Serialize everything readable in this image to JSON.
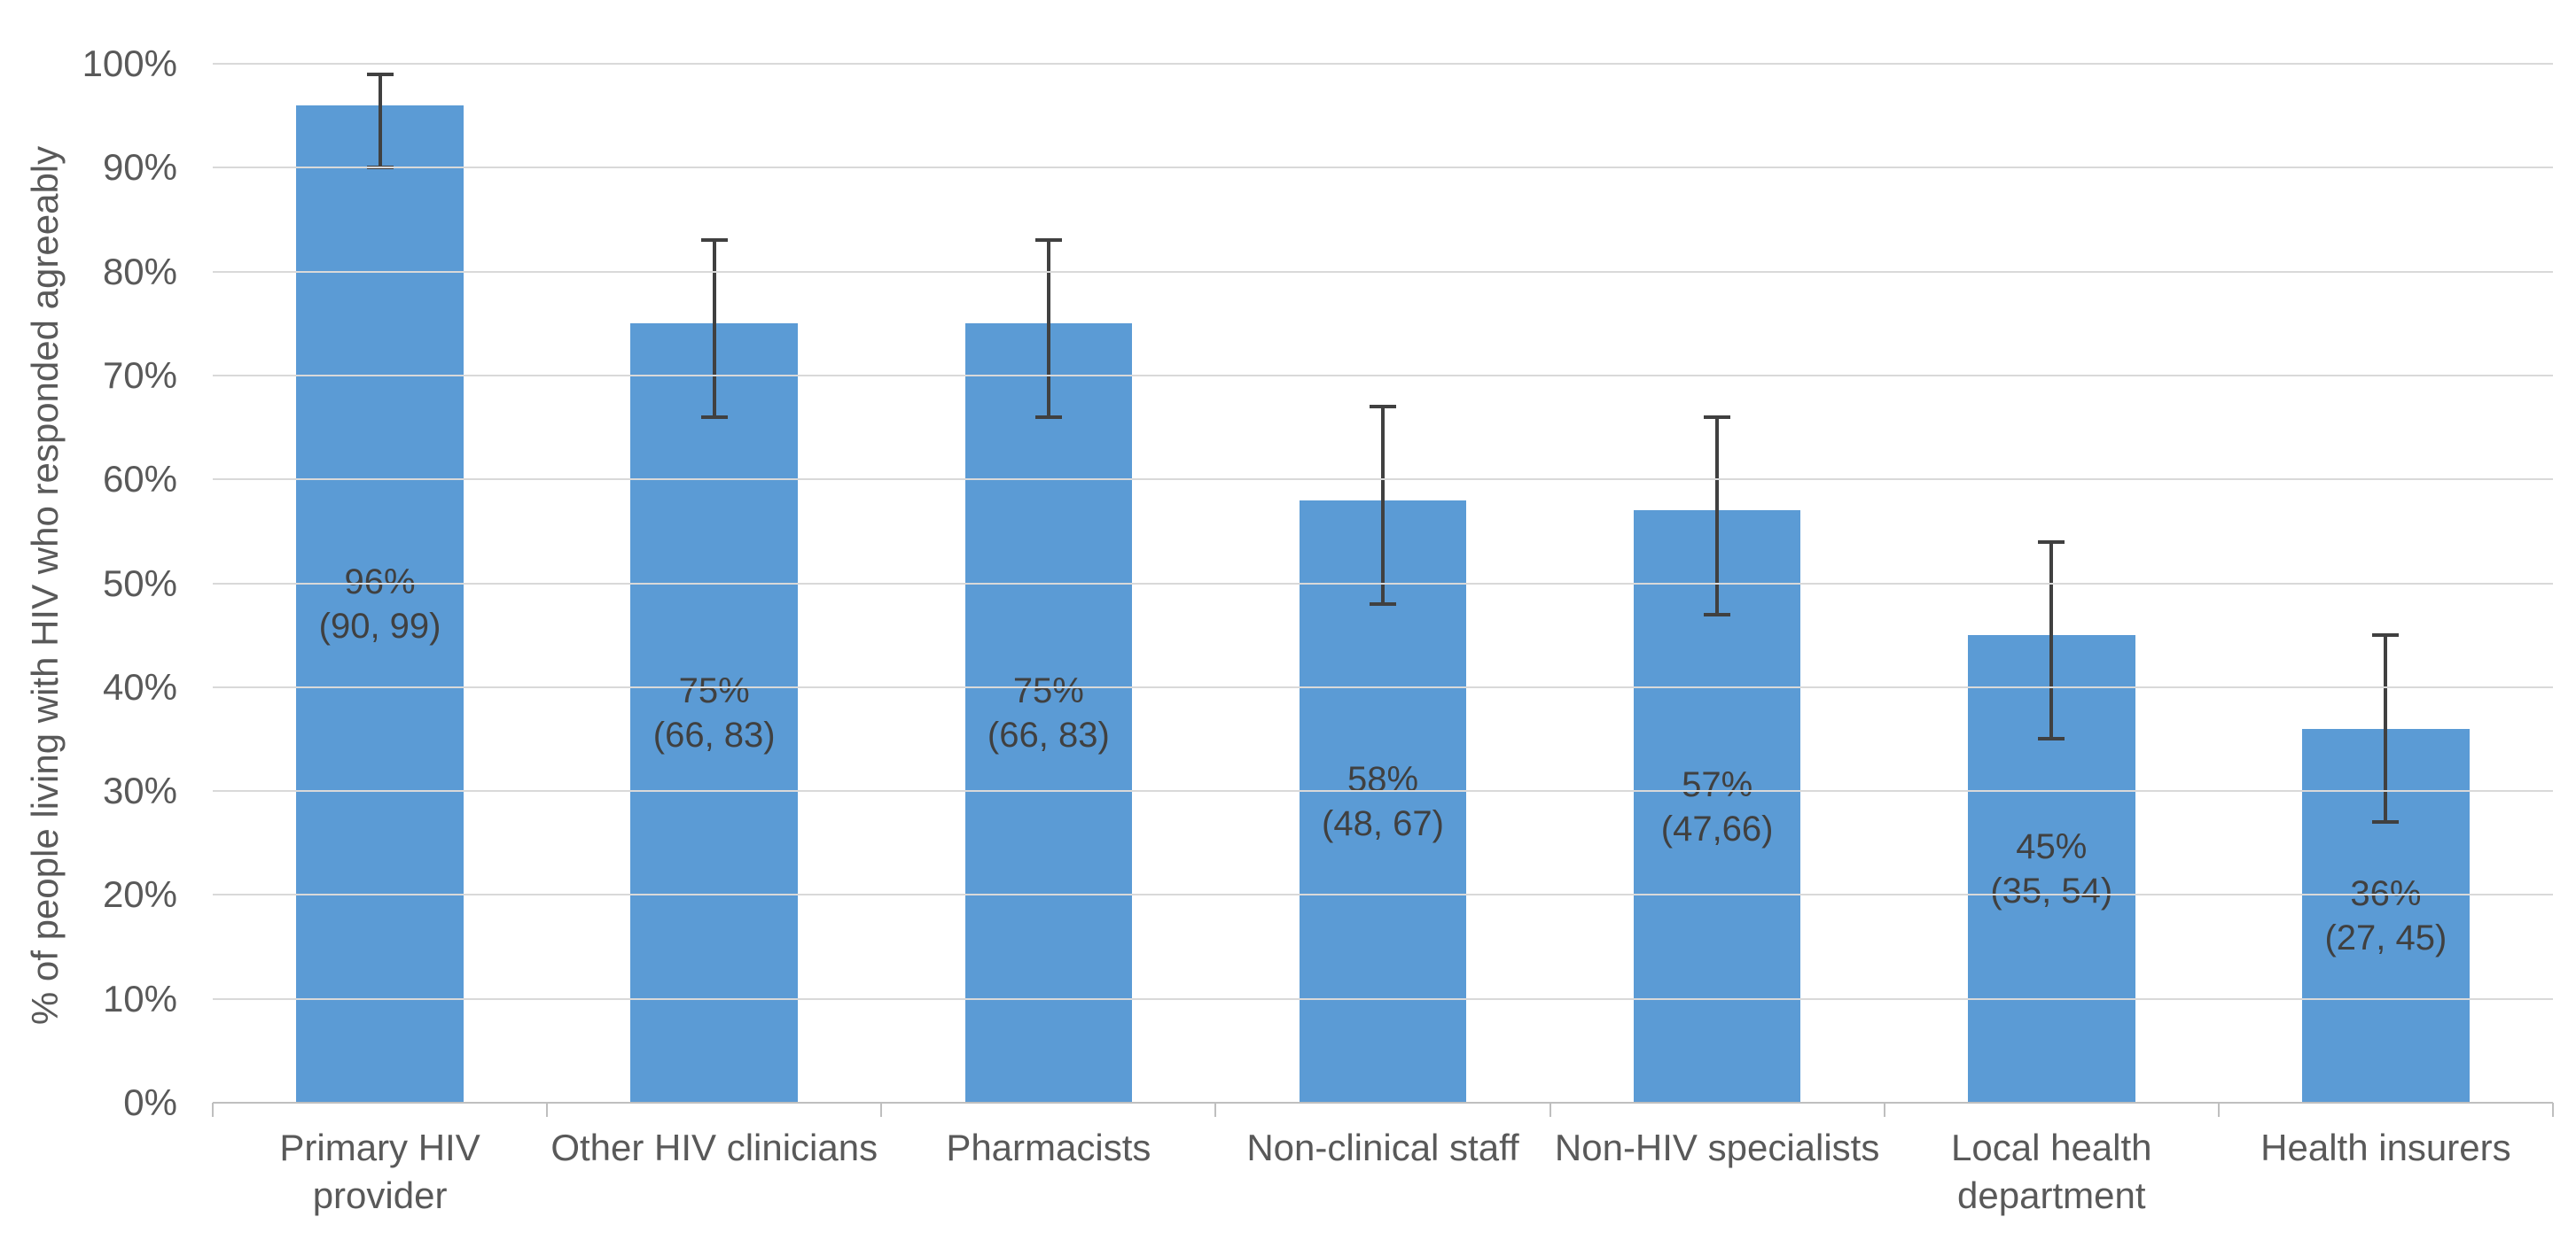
{
  "chart_data": {
    "type": "bar",
    "title": "",
    "xlabel": "",
    "ylabel": "% of people living with HIV who responded agreeably",
    "ylim": [
      0,
      100
    ],
    "ytick_step": 10,
    "ytick_suffix": "%",
    "grid": true,
    "legend": "none",
    "bar_color": "#5b9bd5",
    "error_bar_color": "#404040",
    "gridline_color": "#d9d9d9",
    "axis_line_color": "#bfbfbf",
    "axis_text_color": "#595959",
    "data_label_color": "#404040",
    "categories": [
      "Primary HIV\nprovider",
      "Other HIV clinicians",
      "Pharmacists",
      "Non-clinical staff",
      "Non-HIV specialists",
      "Local health\ndepartment",
      "Health insurers"
    ],
    "series": [
      {
        "name": "% of people living with HIV who responded agreeably",
        "values": [
          96,
          75,
          75,
          58,
          57,
          45,
          36
        ],
        "ci_low": [
          90,
          66,
          66,
          48,
          47,
          35,
          27
        ],
        "ci_high": [
          99,
          83,
          83,
          67,
          66,
          54,
          45
        ],
        "data_labels": [
          {
            "value": "96%",
            "ci": "(90, 99)"
          },
          {
            "value": "75%",
            "ci": "(66, 83)"
          },
          {
            "value": "75%",
            "ci": "(66, 83)"
          },
          {
            "value": "58%",
            "ci": "(48, 67)"
          },
          {
            "value": "57%",
            "ci": "(47,66)"
          },
          {
            "value": "45%",
            "ci": "(35, 54)"
          },
          {
            "value": "36%",
            "ci": "(27, 45)"
          }
        ]
      }
    ]
  }
}
